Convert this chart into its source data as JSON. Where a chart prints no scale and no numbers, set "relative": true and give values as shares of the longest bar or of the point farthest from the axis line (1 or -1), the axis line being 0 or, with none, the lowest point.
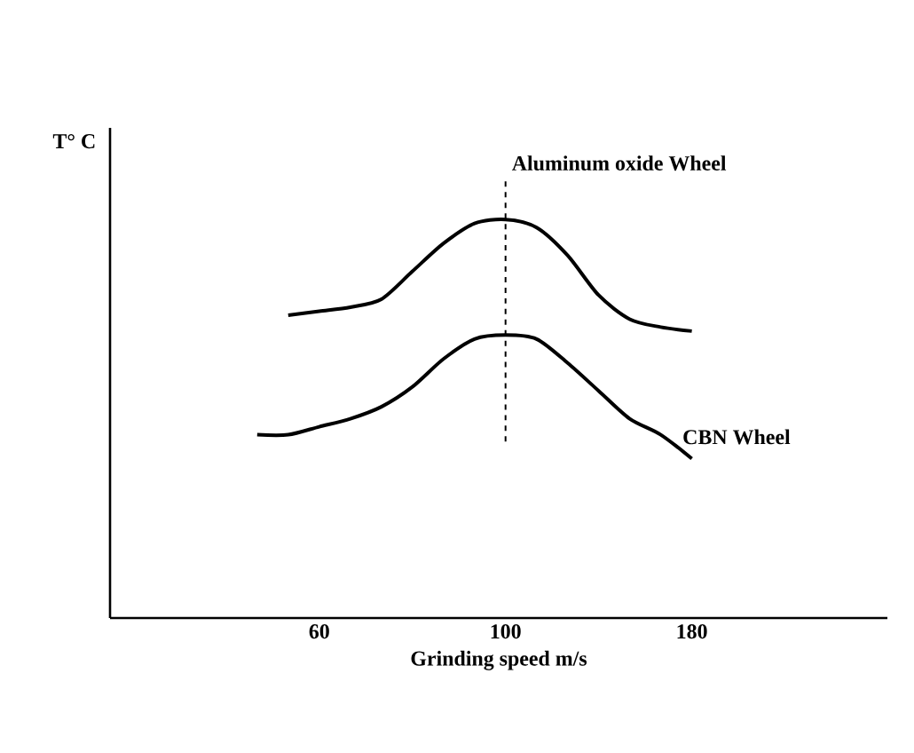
{
  "chart_data": {
    "type": "line",
    "relative": true,
    "xlabel": "Grinding speed m/s",
    "annotations": [
      "T° C"
    ],
    "categories": [
      null,
      null,
      null,
      "60",
      null,
      null,
      null,
      null,
      null,
      "100",
      null,
      null,
      null,
      null,
      null,
      "180",
      null
    ],
    "series": [
      {
        "name": "Aluminum oxide Wheel",
        "color": "#000000",
        "values": [
          null,
          null,
          0.76,
          0.77,
          0.78,
          0.8,
          0.87,
          0.94,
          0.99,
          1.0,
          0.98,
          0.91,
          0.81,
          0.75,
          0.73,
          0.72,
          null
        ]
      },
      {
        "name": "CBN Wheel",
        "color": "#000000",
        "values": [
          null,
          0.46,
          0.46,
          0.48,
          0.5,
          0.53,
          0.58,
          0.65,
          0.7,
          0.71,
          0.7,
          0.64,
          0.57,
          0.5,
          0.46,
          0.4,
          null
        ]
      }
    ],
    "ref_lines": [
      {
        "axis": "x",
        "value": "100",
        "line_style": "dashed"
      }
    ],
    "grid": false
  }
}
